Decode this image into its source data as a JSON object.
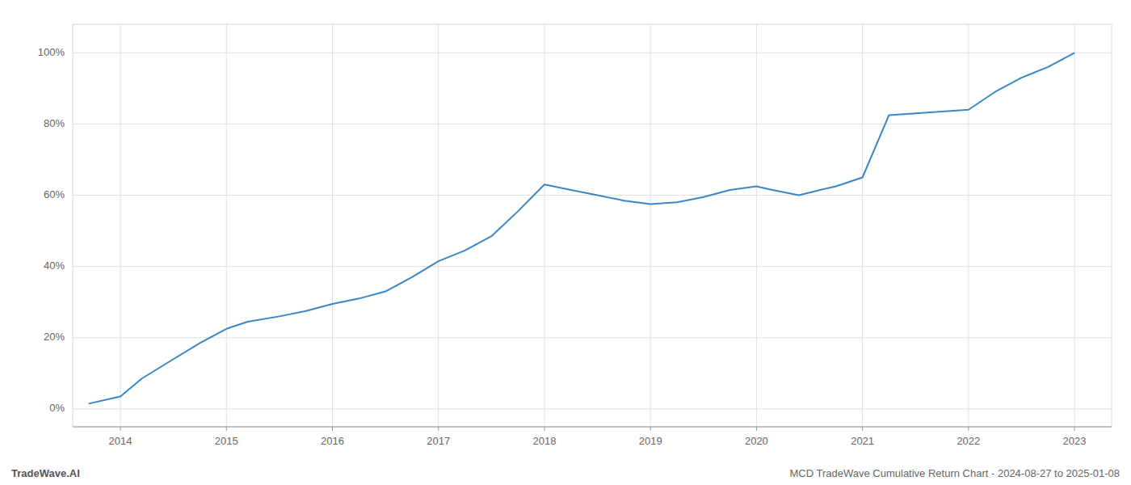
{
  "chart_data": {
    "type": "line",
    "title": "MCD TradeWave Cumulative Return Chart - 2024-08-27 to 2025-01-08",
    "annotations": [
      "TradeWave.AI"
    ],
    "x": [
      2013.7,
      2014.0,
      2014.2,
      2014.5,
      2014.75,
      2015.0,
      2015.2,
      2015.5,
      2015.75,
      2016.0,
      2016.25,
      2016.5,
      2016.75,
      2017.0,
      2017.25,
      2017.5,
      2017.75,
      2018.0,
      2018.25,
      2018.5,
      2018.75,
      2019.0,
      2019.25,
      2019.5,
      2019.75,
      2020.0,
      2020.15,
      2020.4,
      2020.6,
      2020.75,
      2021.0,
      2021.25,
      2021.5,
      2021.75,
      2022.0,
      2022.25,
      2022.5,
      2022.75,
      2023.0
    ],
    "values": [
      1.5,
      3.5,
      8.5,
      14.0,
      18.5,
      22.5,
      24.5,
      26.0,
      27.5,
      29.5,
      31.0,
      33.0,
      37.0,
      41.5,
      44.5,
      48.5,
      55.5,
      63.0,
      61.5,
      60.0,
      58.5,
      57.5,
      58.0,
      59.5,
      61.5,
      62.5,
      61.5,
      60.0,
      61.5,
      62.5,
      65.0,
      82.5,
      83.0,
      83.5,
      84.0,
      89.0,
      93.0,
      96.0,
      100.0
    ],
    "color": "#3a87c8",
    "xlim": [
      2013.55,
      2023.35
    ],
    "ylim": [
      -5,
      108
    ],
    "xticks": [
      2014,
      2015,
      2016,
      2017,
      2018,
      2019,
      2020,
      2021,
      2022,
      2023
    ],
    "yticks": [
      {
        "value": 0,
        "label": "0%"
      },
      {
        "value": 20,
        "label": "20%"
      },
      {
        "value": 40,
        "label": "40%"
      },
      {
        "value": 60,
        "label": "60%"
      },
      {
        "value": 80,
        "label": "80%"
      },
      {
        "value": 100,
        "label": "100%"
      }
    ],
    "grid": true
  }
}
